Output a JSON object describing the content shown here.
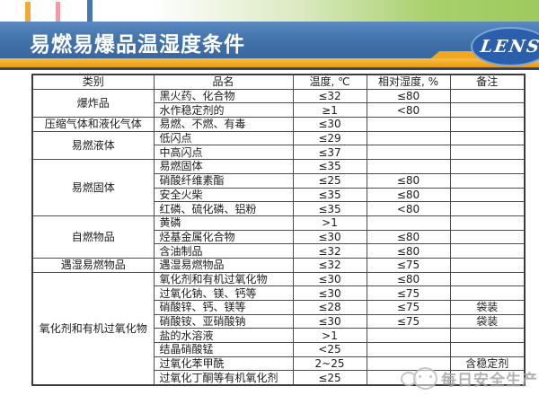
{
  "header": {
    "title": "易燃易爆品温湿度条件",
    "logo": "LENS"
  },
  "colors": {
    "banner_blue": "#4273ac",
    "accent_gold": "#f0a41c",
    "accent_green": "#9dca5e",
    "logo_blue": "#2c5fab"
  },
  "table": {
    "columns": [
      "类别",
      "品名",
      "温度, ℃",
      "相对湿度, %",
      "备注"
    ],
    "groups": [
      {
        "category": "爆炸品",
        "rows": [
          {
            "name": "黑火药、化合物",
            "temp": "≤32",
            "humidity": "≤80",
            "note": ""
          },
          {
            "name": "水作稳定剂的",
            "temp": "≥1",
            "humidity": "<80",
            "note": ""
          }
        ]
      },
      {
        "category": "压缩气体和液化气体",
        "rows": [
          {
            "name": "易燃、不燃、有毒",
            "temp": "≤30",
            "humidity": "",
            "note": ""
          }
        ]
      },
      {
        "category": "易燃液体",
        "rows": [
          {
            "name": "低闪点",
            "temp": "≤29",
            "humidity": "",
            "note": ""
          },
          {
            "name": "中高闪点",
            "temp": "≤37",
            "humidity": "",
            "note": ""
          }
        ]
      },
      {
        "category": "易燃固体",
        "rows": [
          {
            "name": "易燃固体",
            "temp": "≤35",
            "humidity": "",
            "note": ""
          },
          {
            "name": "硝酸纤维素酯",
            "temp": "≤25",
            "humidity": "≤80",
            "note": ""
          },
          {
            "name": "安全火柴",
            "temp": "≤35",
            "humidity": "≤80",
            "note": ""
          },
          {
            "name": "红磷、硫化磷、铝粉",
            "temp": "≤35",
            "humidity": "<80",
            "note": ""
          }
        ]
      },
      {
        "category": "自燃物品",
        "rows": [
          {
            "name": "黄磷",
            "temp": ">1",
            "humidity": "",
            "note": ""
          },
          {
            "name": "烃基金属化合物",
            "temp": "≤30",
            "humidity": "≤80",
            "note": ""
          },
          {
            "name": "含油制品",
            "temp": "≤32",
            "humidity": "≤80",
            "note": ""
          }
        ]
      },
      {
        "category": "遇湿易燃物品",
        "rows": [
          {
            "name": "遇湿易燃物品",
            "temp": "≤32",
            "humidity": "≤75",
            "note": ""
          }
        ]
      },
      {
        "category": "氧化剂和有机过氧化物",
        "rows": [
          {
            "name": "氧化剂和有机过氧化物",
            "temp": "≤30",
            "humidity": "≤80",
            "note": ""
          },
          {
            "name": "过氧化钠、镁、钙等",
            "temp": "≤30",
            "humidity": "≤75",
            "note": ""
          },
          {
            "name": "硝酸锌、钙、镁等",
            "temp": "≤28",
            "humidity": "≤75",
            "note": "袋装"
          },
          {
            "name": "硝酸铵、亚硝酸钠",
            "temp": "≤30",
            "humidity": "≤75",
            "note": "袋装"
          },
          {
            "name": "盐的水溶液",
            "temp": ">1",
            "humidity": "",
            "note": ""
          },
          {
            "name": "结晶硝酸锰",
            "temp": "<25",
            "humidity": "",
            "note": ""
          },
          {
            "name": "过氧化苯甲酰",
            "temp": "2~25",
            "humidity": "",
            "note": "含稳定剂"
          },
          {
            "name": "过氧化丁酮等有机氧化剂",
            "temp": "≤25",
            "humidity": "",
            "note": ""
          }
        ]
      }
    ]
  },
  "watermark": {
    "text": "每日安全生产"
  }
}
